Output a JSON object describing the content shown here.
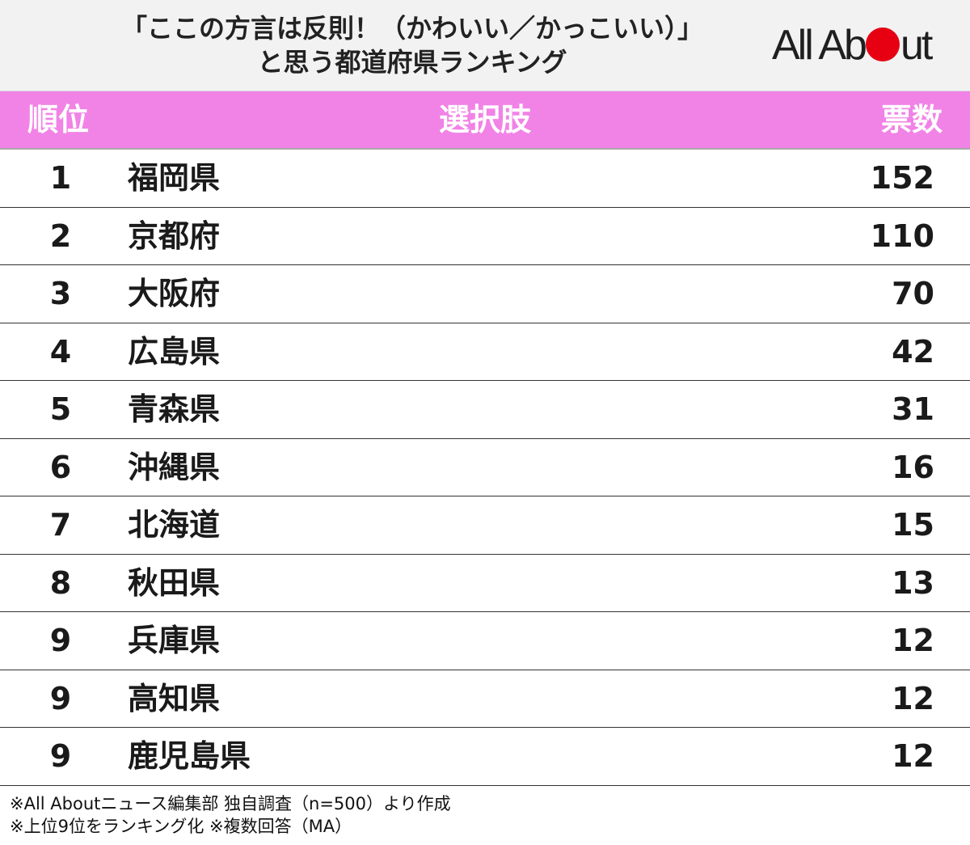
{
  "header": {
    "title_line1": "「ここの方言は反則！（かわいい／かっこいい）」",
    "title_line2": "と思う都道府県ランキング",
    "logo_left": "All Ab",
    "logo_right": "ut",
    "logo_dot_color": "#e60012"
  },
  "chart_data": {
    "type": "table",
    "columns": [
      "順位",
      "選択肢",
      "票数"
    ],
    "rows": [
      {
        "rank": "1",
        "choice": "福岡県",
        "votes": "152"
      },
      {
        "rank": "2",
        "choice": "京都府",
        "votes": "110"
      },
      {
        "rank": "3",
        "choice": "大阪府",
        "votes": "70"
      },
      {
        "rank": "4",
        "choice": "広島県",
        "votes": "42"
      },
      {
        "rank": "5",
        "choice": "青森県",
        "votes": "31"
      },
      {
        "rank": "6",
        "choice": "沖縄県",
        "votes": "16"
      },
      {
        "rank": "7",
        "choice": "北海道",
        "votes": "15"
      },
      {
        "rank": "8",
        "choice": "秋田県",
        "votes": "13"
      },
      {
        "rank": "9",
        "choice": "兵庫県",
        "votes": "12"
      },
      {
        "rank": "9",
        "choice": "高知県",
        "votes": "12"
      },
      {
        "rank": "9",
        "choice": "鹿児島県",
        "votes": "12"
      }
    ]
  },
  "colors": {
    "header_band": "#f183e6",
    "title_band": "#f2f2f2"
  },
  "notes": [
    "※All Aboutニュース編集部 独自調査（n=500）より作成",
    "※上位9位をランキング化 ※複数回答（MA）"
  ]
}
